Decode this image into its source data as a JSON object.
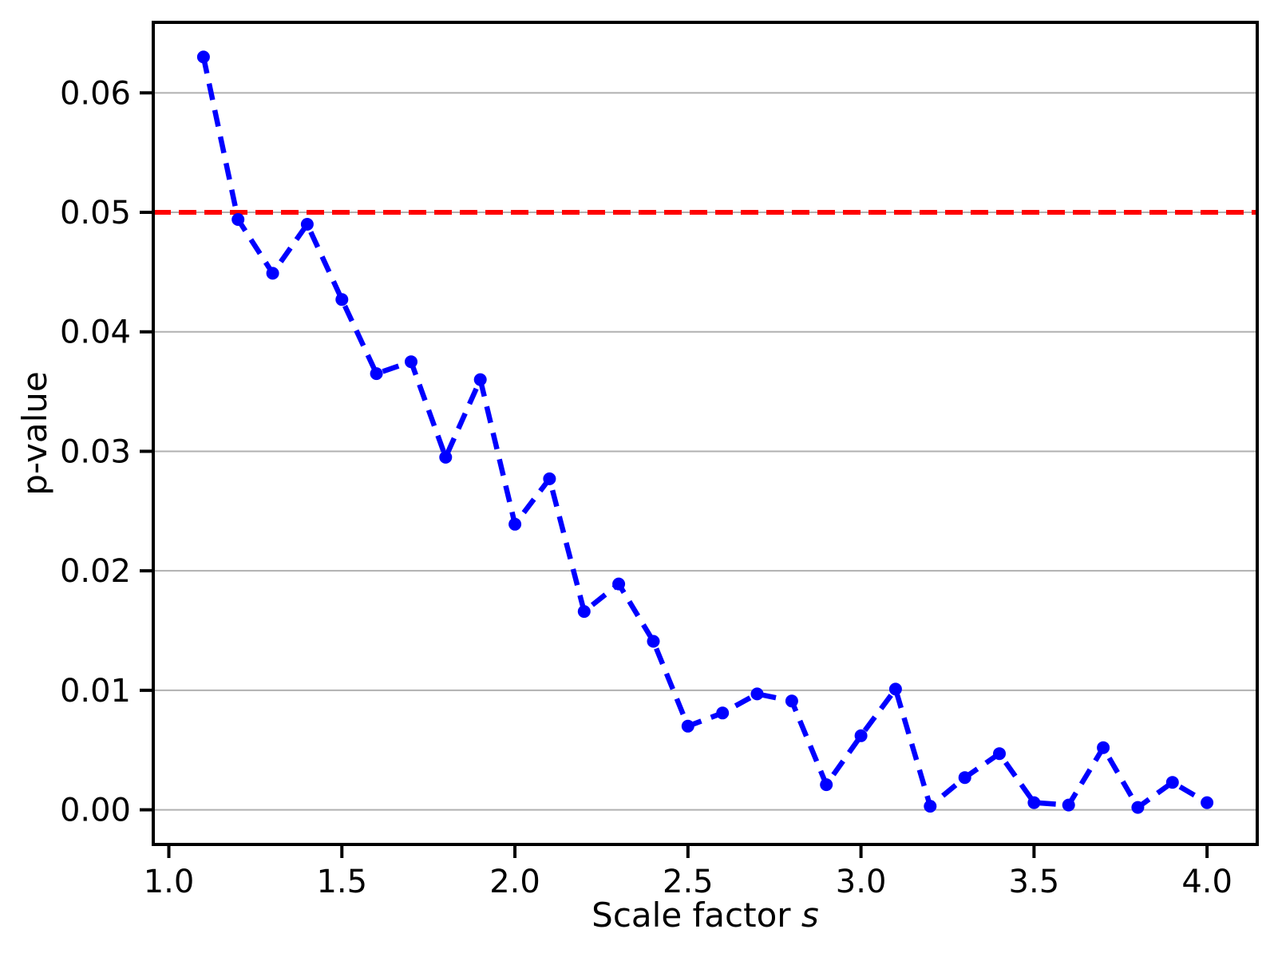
{
  "figure": {
    "background": "#ffffff"
  },
  "chart_data": {
    "type": "line",
    "title": "",
    "xlabel": "Scale factor s",
    "xlabel_prefix": "Scale factor ",
    "xlabel_var": "s",
    "ylabel": "p-value",
    "x": [
      1.1,
      1.2,
      1.3,
      1.4,
      1.5,
      1.6,
      1.7,
      1.8,
      1.9,
      2.0,
      2.1,
      2.2,
      2.3,
      2.4,
      2.5,
      2.6,
      2.7,
      2.8,
      2.9,
      3.0,
      3.1,
      3.2,
      3.3,
      3.4,
      3.5,
      3.6,
      3.7,
      3.8,
      3.9,
      4.0
    ],
    "y": [
      0.063,
      0.0494,
      0.0449,
      0.049,
      0.0427,
      0.0365,
      0.0375,
      0.0295,
      0.036,
      0.0239,
      0.0277,
      0.0166,
      0.0189,
      0.0141,
      0.007,
      0.0081,
      0.0097,
      0.0091,
      0.0021,
      0.0062,
      0.0101,
      0.0003,
      0.0027,
      0.0047,
      0.0006,
      0.0004,
      0.0052,
      0.0002,
      0.0023,
      0.0006
    ],
    "line_color": "#0000ff",
    "line_style": "dashed",
    "marker": "circle",
    "threshold": {
      "y": 0.05,
      "color": "#ff0000",
      "style": "dashed"
    },
    "xlim": [
      0.955,
      4.145
    ],
    "ylim": [
      -0.0029,
      0.0659
    ],
    "xticks": {
      "values": [
        1.0,
        1.5,
        2.0,
        2.5,
        3.0,
        3.5,
        4.0
      ],
      "labels": [
        "1.0",
        "1.5",
        "2.0",
        "2.5",
        "3.0",
        "3.5",
        "4.0"
      ]
    },
    "yticks": {
      "values": [
        0.0,
        0.01,
        0.02,
        0.03,
        0.04,
        0.05,
        0.06
      ],
      "labels": [
        "0.00",
        "0.01",
        "0.02",
        "0.03",
        "0.04",
        "0.05",
        "0.06"
      ]
    },
    "grid": "horizontal",
    "grid_color": "#b0b0b0",
    "legend": "none"
  }
}
